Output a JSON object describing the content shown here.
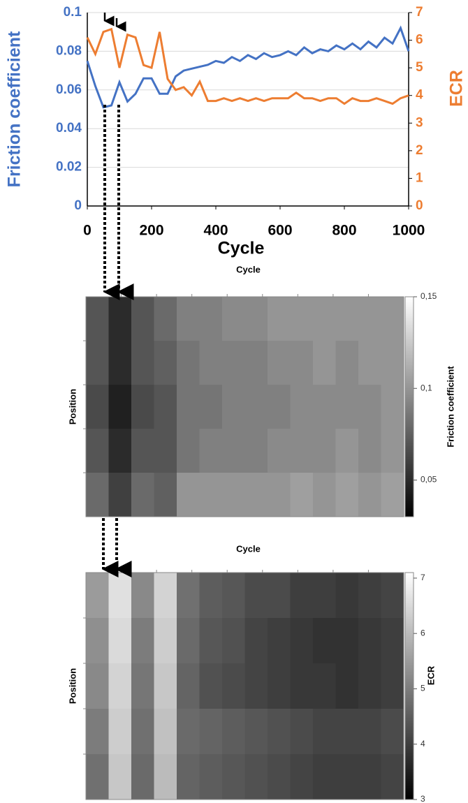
{
  "chart_data": [
    {
      "type": "line",
      "x_label": "Cycle",
      "y_label": "Friction coefficient",
      "y2_label": "ECR",
      "x": [
        0,
        25,
        50,
        75,
        100,
        125,
        150,
        175,
        200,
        225,
        250,
        275,
        300,
        325,
        350,
        375,
        400,
        425,
        450,
        475,
        500,
        525,
        550,
        575,
        600,
        625,
        650,
        675,
        700,
        725,
        750,
        775,
        800,
        825,
        850,
        875,
        900,
        925,
        950,
        975,
        1000
      ],
      "xlim": [
        0,
        1000
      ],
      "xticks": [
        0,
        200,
        400,
        600,
        800,
        1000
      ],
      "ylim": [
        0,
        0.1
      ],
      "yticks": [
        0,
        0.02,
        0.04,
        0.06,
        0.08,
        0.1
      ],
      "y2lim": [
        0,
        7
      ],
      "y2ticks": [
        0,
        1,
        2,
        3,
        4,
        5,
        6,
        7
      ],
      "grid": true,
      "series": [
        {
          "name": "Friction coefficient",
          "color": "#4472c4",
          "values": [
            0.075,
            0.062,
            0.051,
            0.052,
            0.064,
            0.054,
            0.058,
            0.066,
            0.066,
            0.058,
            0.058,
            0.067,
            0.07,
            0.071,
            0.072,
            0.073,
            0.075,
            0.074,
            0.077,
            0.075,
            0.078,
            0.076,
            0.079,
            0.077,
            0.078,
            0.08,
            0.078,
            0.082,
            0.079,
            0.081,
            0.08,
            0.083,
            0.081,
            0.084,
            0.081,
            0.085,
            0.082,
            0.087,
            0.084,
            0.092,
            0.08
          ]
        },
        {
          "name": "ECR",
          "color": "#ed7d31",
          "axis": "y2",
          "values": [
            6.1,
            5.5,
            6.3,
            6.4,
            5.0,
            6.2,
            6.1,
            5.1,
            5.0,
            6.3,
            4.6,
            4.2,
            4.3,
            4.0,
            4.5,
            3.8,
            3.8,
            3.9,
            3.8,
            3.9,
            3.8,
            3.9,
            3.8,
            3.9,
            3.9,
            3.9,
            4.1,
            3.9,
            3.9,
            3.8,
            3.9,
            3.9,
            3.7,
            3.9,
            3.8,
            3.8,
            3.9,
            3.8,
            3.7,
            3.9,
            4.0
          ]
        }
      ]
    },
    {
      "type": "heatmap",
      "title": "Cycle",
      "y_label": "Position",
      "colorbar_label": "Friction coefficient",
      "zlim": [
        0.03,
        0.15
      ],
      "zticks": [
        {
          "value": 0.05,
          "label": "0,05"
        },
        {
          "value": 0.1,
          "label": "0,1"
        },
        {
          "value": 0.15,
          "label": "0,15"
        }
      ],
      "values": [
        [
          0.07,
          0.05,
          0.07,
          0.08,
          0.09,
          0.09,
          0.095,
          0.095,
          0.1,
          0.1,
          0.1,
          0.1,
          0.1,
          0.1
        ],
        [
          0.07,
          0.05,
          0.07,
          0.075,
          0.085,
          0.09,
          0.09,
          0.09,
          0.095,
          0.095,
          0.1,
          0.095,
          0.1,
          0.1
        ],
        [
          0.065,
          0.045,
          0.065,
          0.07,
          0.085,
          0.085,
          0.09,
          0.09,
          0.09,
          0.095,
          0.095,
          0.095,
          0.095,
          0.1
        ],
        [
          0.07,
          0.05,
          0.07,
          0.07,
          0.085,
          0.09,
          0.09,
          0.09,
          0.095,
          0.095,
          0.095,
          0.1,
          0.095,
          0.1
        ],
        [
          0.08,
          0.06,
          0.08,
          0.075,
          0.1,
          0.1,
          0.1,
          0.1,
          0.1,
          0.105,
          0.1,
          0.105,
          0.1,
          0.105
        ]
      ]
    },
    {
      "type": "heatmap",
      "title": "Cycle",
      "y_label": "Position",
      "colorbar_label": "ECR",
      "zlim": [
        3,
        7.1
      ],
      "zticks": [
        3,
        4,
        5,
        6,
        7
      ],
      "values": [
        [
          5.5,
          6.6,
          5.2,
          6.4,
          4.8,
          4.5,
          4.4,
          4.2,
          4.2,
          4.0,
          4.0,
          3.9,
          4.0,
          4.1
        ],
        [
          5.3,
          6.5,
          5.0,
          6.3,
          4.7,
          4.4,
          4.3,
          4.1,
          4.0,
          3.9,
          3.8,
          3.8,
          3.9,
          4.0
        ],
        [
          5.2,
          6.4,
          4.9,
          6.2,
          4.6,
          4.3,
          4.2,
          4.1,
          4.0,
          3.9,
          3.9,
          3.8,
          3.9,
          4.0
        ],
        [
          5.0,
          6.3,
          4.8,
          6.1,
          4.7,
          4.6,
          4.5,
          4.4,
          4.3,
          4.2,
          4.1,
          4.1,
          4.1,
          4.2
        ],
        [
          4.8,
          6.2,
          4.7,
          6.0,
          4.6,
          4.5,
          4.4,
          4.3,
          4.2,
          4.1,
          4.0,
          4.0,
          4.0,
          4.1
        ]
      ]
    }
  ]
}
